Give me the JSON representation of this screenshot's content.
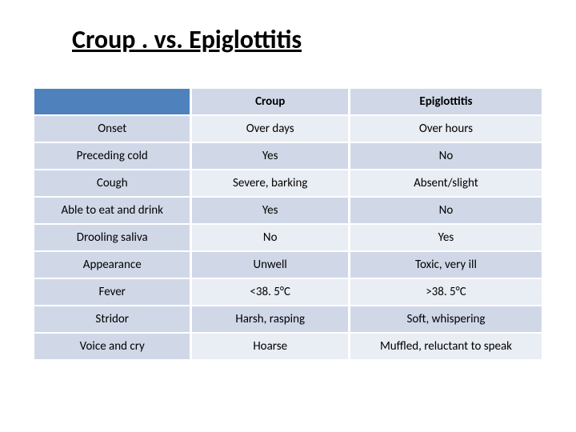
{
  "title": "Croup . vs. Epiglottitis",
  "table": {
    "type": "table",
    "columns": [
      "",
      "Croup",
      "Epiglottitis"
    ],
    "rows": [
      [
        "Onset",
        "Over days",
        "Over hours"
      ],
      [
        "Preceding cold",
        "Yes",
        "No"
      ],
      [
        "Cough",
        "Severe, barking",
        "Absent/slight"
      ],
      [
        "Able to eat and drink",
        "Yes",
        "No"
      ],
      [
        "Drooling saliva",
        "No",
        "Yes"
      ],
      [
        "Appearance",
        "Unwell",
        "Toxic, very ill"
      ],
      [
        "Fever",
        "<38. 5°C",
        ">38. 5°C"
      ],
      [
        "Stridor",
        "Harsh, rasping",
        "Soft, whispering"
      ],
      [
        "Voice and cry",
        "Hoarse",
        "Muffled, reluctant to speak"
      ]
    ],
    "header_corner_bg": "#4f81bd",
    "header_cell_bg": "#d0d8e8",
    "row_label_bg": "#d0d8e8",
    "row_odd_bg": "#e9edf4",
    "row_even_bg": "#d0d8e8",
    "border_color": "#ffffff",
    "text_color": "#000000",
    "title_fontsize": 32,
    "cell_fontsize": 15,
    "col_widths": [
      "31%",
      "31%",
      "38%"
    ]
  }
}
